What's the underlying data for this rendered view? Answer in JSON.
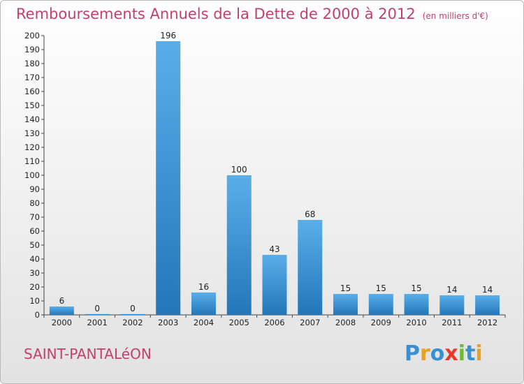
{
  "title": "Remboursements Annuels de la Dette de 2000 à 2012",
  "subtitle": "(en milliers d'€)",
  "place": "SAINT-PANTALéON",
  "logo": {
    "text": "Proxiti",
    "letters": [
      {
        "char": "P",
        "color": "#3a8fd0"
      },
      {
        "char": "r",
        "color": "#e8a020"
      },
      {
        "char": "o",
        "color": "#3a8fd0"
      },
      {
        "char": "x",
        "color": "#e8382a"
      },
      {
        "char": "i",
        "color": "#6fb83a"
      },
      {
        "char": "t",
        "color": "#3a8fd0"
      },
      {
        "char": "i",
        "color": "#e8a020"
      }
    ]
  },
  "colors": {
    "title": "#c33f6e",
    "bar_light": "#5aaee8",
    "bar_dark": "#2377b9",
    "axis": "#444444"
  },
  "chart_data": {
    "type": "bar",
    "categories": [
      "2000",
      "2001",
      "2002",
      "2003",
      "2004",
      "2005",
      "2006",
      "2007",
      "2008",
      "2009",
      "2010",
      "2011",
      "2012"
    ],
    "values": [
      6,
      0,
      0,
      196,
      16,
      100,
      43,
      68,
      15,
      15,
      15,
      14,
      14
    ],
    "ylim": [
      0,
      200
    ],
    "yticks": [
      0,
      10,
      20,
      30,
      40,
      50,
      60,
      70,
      80,
      90,
      100,
      110,
      120,
      130,
      140,
      150,
      160,
      170,
      180,
      190,
      200
    ],
    "grid": false
  }
}
